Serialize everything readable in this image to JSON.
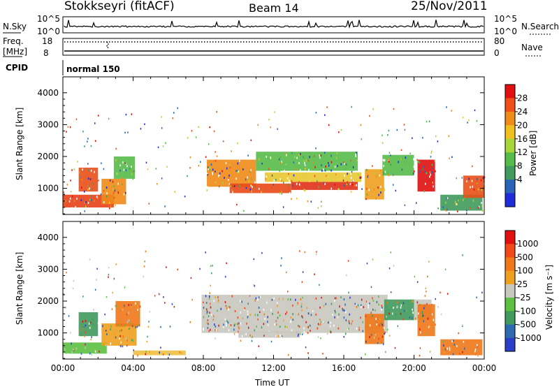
{
  "header": {
    "station": "Stokkseyri (fitACF)",
    "beam": "Beam 14",
    "date": "25/Nov/2011"
  },
  "top_panels": {
    "nsky_label": "N.Sky",
    "nsky_ticks": [
      "10^5",
      "10^0"
    ],
    "nsearch_label": "N.Search",
    "nsearch_ticks": [
      "10^5",
      "10^0"
    ],
    "freq_label": "Freq.",
    "freq_unit": "[MHz]",
    "freq_ticks": [
      "18",
      "8"
    ],
    "nave_label": "Nave",
    "nave_ticks": [
      "80",
      "0"
    ],
    "cpid_label": "CPID",
    "cpid_value": "normal 150"
  },
  "chart_data": [
    {
      "type": "heatmap",
      "name": "power-panel",
      "ylabel": "Slant Range [km]",
      "ylim": [
        180,
        4500
      ],
      "yticks": [
        "4000",
        "3000",
        "2000",
        "1000"
      ],
      "xlim": [
        0,
        24
      ],
      "colorbar_label": "Power [dB]",
      "colorbar_ticks": [
        "28",
        "24",
        "20",
        "16",
        "12",
        "8",
        "4"
      ],
      "colorbar_colors": [
        "#1e2bd8",
        "#2a64b8",
        "#3f9a5c",
        "#56bb4a",
        "#a8d63a",
        "#f0c020",
        "#f08a18",
        "#f05018",
        "#e01010"
      ],
      "bands": [
        {
          "t0": 0.0,
          "t1": 2.9,
          "r0": 400,
          "r1": 800,
          "color": "#e8401a"
        },
        {
          "t0": 0.9,
          "t1": 2.0,
          "r0": 900,
          "r1": 1650,
          "color": "#e85018"
        },
        {
          "t0": 2.2,
          "t1": 3.6,
          "r0": 500,
          "r1": 1300,
          "color": "#f08a18"
        },
        {
          "t0": 2.9,
          "t1": 4.1,
          "r0": 1300,
          "r1": 2000,
          "color": "#56bb4a"
        },
        {
          "t0": 8.2,
          "t1": 11.0,
          "r0": 1050,
          "r1": 1900,
          "color": "#f08a18"
        },
        {
          "t0": 9.5,
          "t1": 13.0,
          "r0": 850,
          "r1": 1150,
          "color": "#e84a18"
        },
        {
          "t0": 11.0,
          "t1": 16.8,
          "r0": 1550,
          "r1": 2150,
          "color": "#56bb4a"
        },
        {
          "t0": 11.5,
          "t1": 17.0,
          "r0": 1200,
          "r1": 1500,
          "color": "#e8c830"
        },
        {
          "t0": 13.0,
          "t1": 16.8,
          "r0": 950,
          "r1": 1200,
          "color": "#e03018"
        },
        {
          "t0": 17.2,
          "t1": 18.3,
          "r0": 650,
          "r1": 1600,
          "color": "#f0a020"
        },
        {
          "t0": 18.2,
          "t1": 20.0,
          "r0": 1400,
          "r1": 2050,
          "color": "#56bb4a"
        },
        {
          "t0": 20.2,
          "t1": 21.2,
          "r0": 900,
          "r1": 1900,
          "color": "#e01010"
        },
        {
          "t0": 21.5,
          "t1": 23.9,
          "r0": 300,
          "r1": 800,
          "color": "#3f9a5c"
        },
        {
          "t0": 22.8,
          "t1": 24.0,
          "r0": 700,
          "r1": 1400,
          "color": "#e85018"
        }
      ]
    },
    {
      "type": "heatmap",
      "name": "velocity-panel",
      "ylabel": "Slant Range [km]",
      "xlabel": "Time UT",
      "ylim": [
        180,
        4500
      ],
      "yticks": [
        "4000",
        "3000",
        "2000",
        "1000"
      ],
      "xlim": [
        0,
        24
      ],
      "xticks": [
        "00:00",
        "04:00",
        "08:00",
        "12:00",
        "16:00",
        "20:00",
        "00:00"
      ],
      "colorbar_label": "Velocity [m s⁻¹]",
      "colorbar_ticks": [
        "1000",
        "500",
        "100",
        "25",
        "-25",
        "-100",
        "-500",
        "-1000"
      ],
      "colorbar_colors": [
        "#2a3ec8",
        "#2e6ab0",
        "#3f9a5c",
        "#5cc040",
        "#c8c8c0",
        "#f0a020",
        "#f07818",
        "#f04818",
        "#e01010"
      ],
      "bands": [
        {
          "t0": 0.0,
          "t1": 2.5,
          "r0": 350,
          "r1": 700,
          "color": "#5cc040"
        },
        {
          "t0": 0.9,
          "t1": 2.0,
          "r0": 900,
          "r1": 1650,
          "color": "#3f9a5c"
        },
        {
          "t0": 2.2,
          "t1": 4.2,
          "r0": 600,
          "r1": 1300,
          "color": "#f0a020"
        },
        {
          "t0": 3.0,
          "t1": 4.4,
          "r0": 1200,
          "r1": 2000,
          "color": "#f07818"
        },
        {
          "t0": 4.0,
          "t1": 7.0,
          "r0": 300,
          "r1": 450,
          "color": "#f0c040"
        },
        {
          "t0": 7.9,
          "t1": 18.5,
          "r0": 1000,
          "r1": 2200,
          "color": "#c8c8c0"
        },
        {
          "t0": 10.0,
          "t1": 13.5,
          "r0": 850,
          "r1": 1050,
          "color": "#c8c8c0"
        },
        {
          "t0": 17.2,
          "t1": 18.3,
          "r0": 650,
          "r1": 1600,
          "color": "#f07818"
        },
        {
          "t0": 18.3,
          "t1": 20.0,
          "r0": 1400,
          "r1": 2050,
          "color": "#3f9a5c"
        },
        {
          "t0": 20.0,
          "t1": 21.0,
          "r0": 1400,
          "r1": 2050,
          "color": "#c8c8c0"
        },
        {
          "t0": 20.2,
          "t1": 21.2,
          "r0": 900,
          "r1": 1900,
          "color": "#f07818"
        },
        {
          "t0": 21.5,
          "t1": 23.9,
          "r0": 300,
          "r1": 800,
          "color": "#f07818"
        }
      ]
    }
  ]
}
